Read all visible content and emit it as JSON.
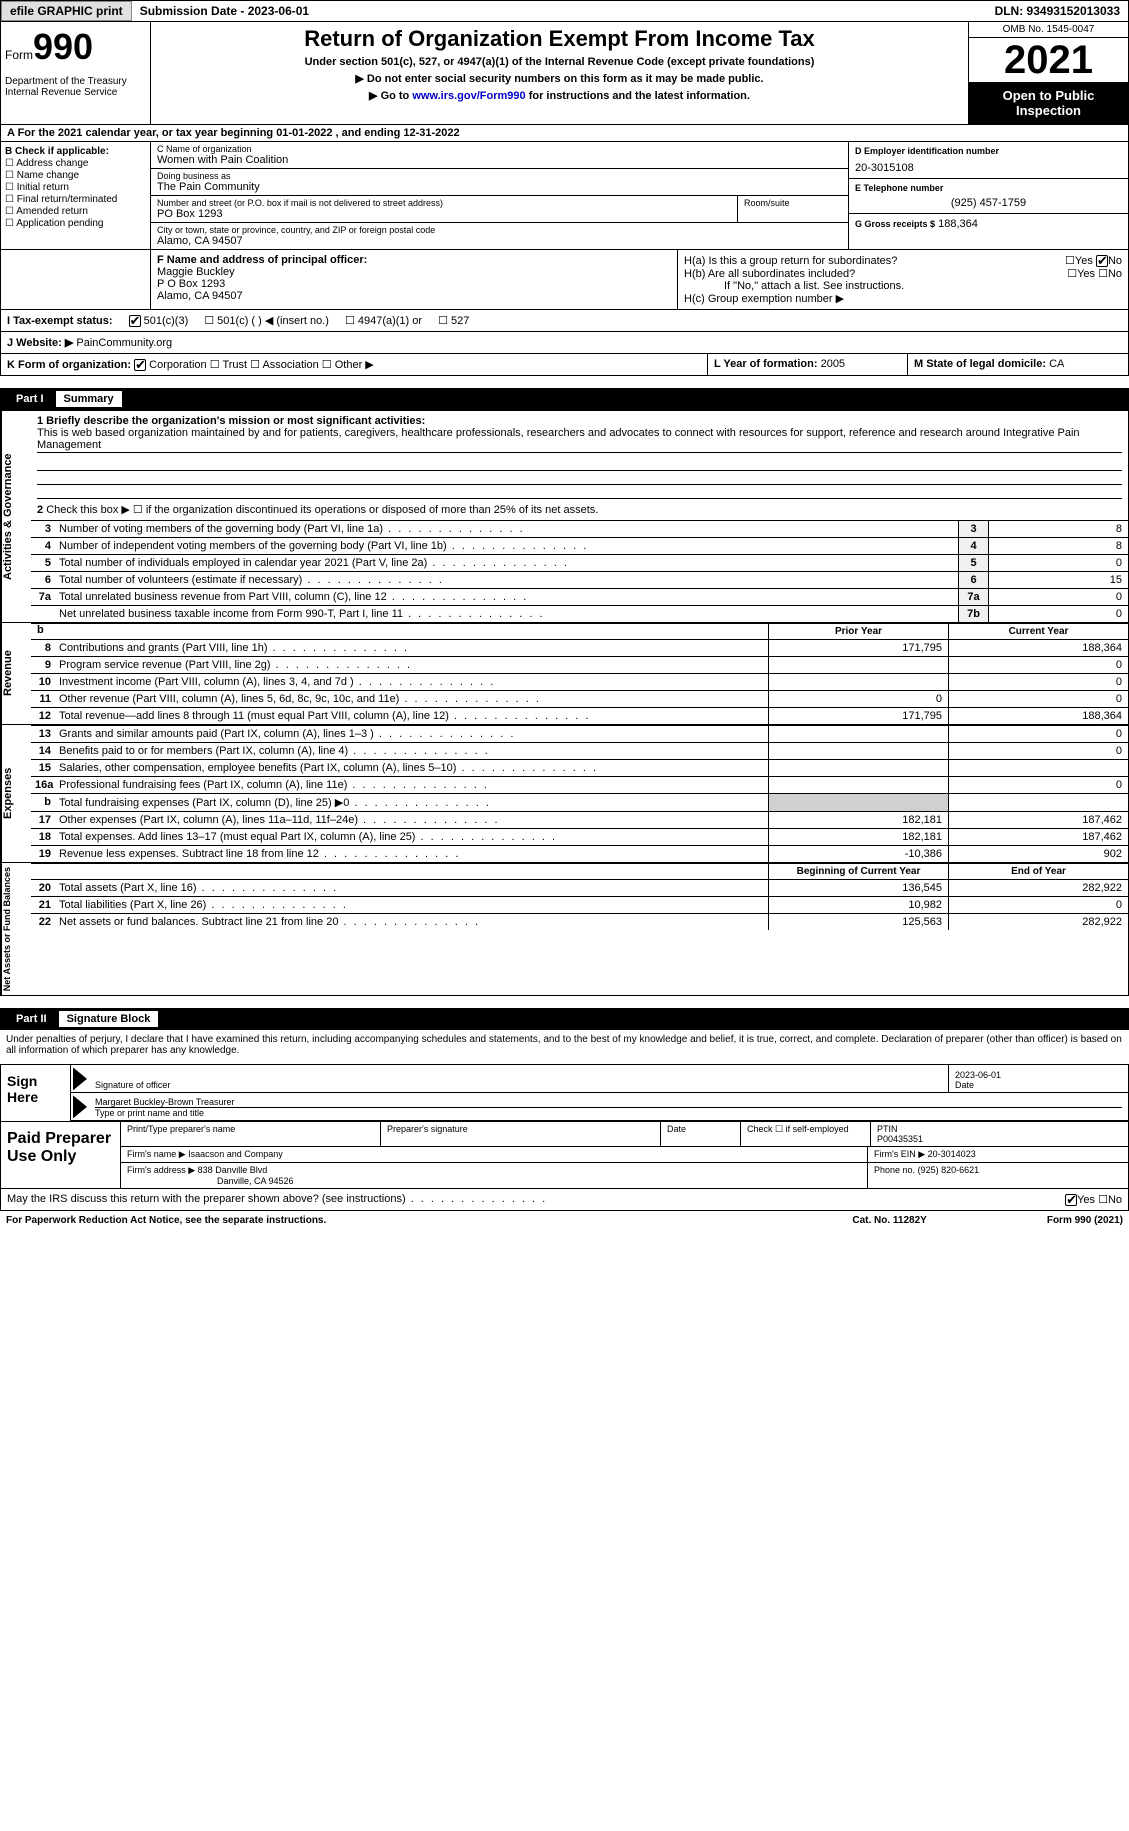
{
  "topbar": {
    "efile_btn": "efile GRAPHIC print",
    "sub_date_label": "Submission Date - 2023-06-01",
    "dln": "DLN: 93493152013033"
  },
  "header": {
    "form_label": "Form",
    "form_num": "990",
    "dept": "Department of the Treasury Internal Revenue Service",
    "title": "Return of Organization Exempt From Income Tax",
    "subtitle": "Under section 501(c), 527, or 4947(a)(1) of the Internal Revenue Code (except private foundations)",
    "note1": "▶ Do not enter social security numbers on this form as it may be made public.",
    "note2_pre": "▶ Go to ",
    "note2_link": "www.irs.gov/Form990",
    "note2_post": " for instructions and the latest information.",
    "omb": "OMB No. 1545-0047",
    "year": "2021",
    "open": "Open to Public Inspection"
  },
  "line_a": "A For the 2021 calendar year, or tax year beginning 01-01-2022  , and ending 12-31-2022",
  "col_b": {
    "hdr": "B Check if applicable:",
    "items": [
      "Address change",
      "Name change",
      "Initial return",
      "Final return/terminated",
      "Amended return",
      "Application pending"
    ]
  },
  "col_c": {
    "name_label": "C Name of organization",
    "name": "Women with Pain Coalition",
    "dba_label": "Doing business as",
    "dba": "The Pain Community",
    "street_label": "Number and street (or P.O. box if mail is not delivered to street address)",
    "street": "PO Box 1293",
    "room_label": "Room/suite",
    "city_label": "City or town, state or province, country, and ZIP or foreign postal code",
    "city": "Alamo, CA  94507"
  },
  "col_d": {
    "ein_label": "D Employer identification number",
    "ein": "20-3015108",
    "tel_label": "E Telephone number",
    "tel": "(925) 457-1759",
    "gross_label": "G Gross receipts $",
    "gross": "188,364"
  },
  "section_f": {
    "label": "F  Name and address of principal officer:",
    "name": "Maggie Buckley",
    "addr1": "P O Box 1293",
    "addr2": "Alamo, CA  94507"
  },
  "section_h": {
    "ha": "H(a)  Is this a group return for subordinates?",
    "hb": "H(b)  Are all subordinates included?",
    "hb_note": "If \"No,\" attach a list. See instructions.",
    "hc": "H(c)  Group exemption number ▶",
    "yes": "Yes",
    "no": "No"
  },
  "status": {
    "label": "I  Tax-exempt status:",
    "opt1": "501(c)(3)",
    "opt2": "501(c) (  ) ◀ (insert no.)",
    "opt3": "4947(a)(1) or",
    "opt4": "527"
  },
  "website": {
    "label": "J  Website: ▶",
    "val": "PainCommunity.org"
  },
  "line_k": {
    "label": "K Form of organization:",
    "corp": "Corporation",
    "trust": "Trust",
    "assoc": "Association",
    "other": "Other ▶"
  },
  "line_l": {
    "label": "L Year of formation:",
    "val": "2005"
  },
  "line_m": {
    "label": "M State of legal domicile:",
    "val": "CA"
  },
  "part1": {
    "num": "Part I",
    "title": "Summary",
    "side1": "Activities & Governance",
    "side2": "Revenue",
    "side3": "Expenses",
    "side4": "Net Assets or Fund Balances",
    "l1_label": "1  Briefly describe the organization's mission or most significant activities:",
    "l1_text": "This is web based organization maintained by and for patients, caregivers, healthcare professionals, researchers and advocates to connect with resources for support, reference and research around Integrative Pain Management",
    "l2": "Check this box ▶ ☐ if the organization discontinued its operations or disposed of more than 25% of its net assets.",
    "rows_gov": [
      {
        "n": "3",
        "d": "Number of voting members of the governing body (Part VI, line 1a)",
        "box": "3",
        "v": "8"
      },
      {
        "n": "4",
        "d": "Number of independent voting members of the governing body (Part VI, line 1b)",
        "box": "4",
        "v": "8"
      },
      {
        "n": "5",
        "d": "Total number of individuals employed in calendar year 2021 (Part V, line 2a)",
        "box": "5",
        "v": "0"
      },
      {
        "n": "6",
        "d": "Total number of volunteers (estimate if necessary)",
        "box": "6",
        "v": "15"
      },
      {
        "n": "7a",
        "d": "Total unrelated business revenue from Part VIII, column (C), line 12",
        "box": "7a",
        "v": "0"
      },
      {
        "n": "",
        "d": "Net unrelated business taxable income from Form 990-T, Part I, line 11",
        "box": "7b",
        "v": "0"
      }
    ],
    "prior_hdr": "Prior Year",
    "curr_hdr": "Current Year",
    "rows_rev": [
      {
        "n": "8",
        "d": "Contributions and grants (Part VIII, line 1h)",
        "p": "171,795",
        "c": "188,364"
      },
      {
        "n": "9",
        "d": "Program service revenue (Part VIII, line 2g)",
        "p": "",
        "c": "0"
      },
      {
        "n": "10",
        "d": "Investment income (Part VIII, column (A), lines 3, 4, and 7d )",
        "p": "",
        "c": "0"
      },
      {
        "n": "11",
        "d": "Other revenue (Part VIII, column (A), lines 5, 6d, 8c, 9c, 10c, and 11e)",
        "p": "0",
        "c": "0"
      },
      {
        "n": "12",
        "d": "Total revenue—add lines 8 through 11 (must equal Part VIII, column (A), line 12)",
        "p": "171,795",
        "c": "188,364"
      }
    ],
    "rows_exp": [
      {
        "n": "13",
        "d": "Grants and similar amounts paid (Part IX, column (A), lines 1–3 )",
        "p": "",
        "c": "0"
      },
      {
        "n": "14",
        "d": "Benefits paid to or for members (Part IX, column (A), line 4)",
        "p": "",
        "c": "0"
      },
      {
        "n": "15",
        "d": "Salaries, other compensation, employee benefits (Part IX, column (A), lines 5–10)",
        "p": "",
        "c": ""
      },
      {
        "n": "16a",
        "d": "Professional fundraising fees (Part IX, column (A), line 11e)",
        "p": "",
        "c": "0"
      },
      {
        "n": "b",
        "d": "Total fundraising expenses (Part IX, column (D), line 25) ▶0",
        "p": "",
        "c": "",
        "shaded": true
      },
      {
        "n": "17",
        "d": "Other expenses (Part IX, column (A), lines 11a–11d, 11f–24e)",
        "p": "182,181",
        "c": "187,462"
      },
      {
        "n": "18",
        "d": "Total expenses. Add lines 13–17 (must equal Part IX, column (A), line 25)",
        "p": "182,181",
        "c": "187,462"
      },
      {
        "n": "19",
        "d": "Revenue less expenses. Subtract line 18 from line 12",
        "p": "-10,386",
        "c": "902"
      }
    ],
    "begin_hdr": "Beginning of Current Year",
    "end_hdr": "End of Year",
    "rows_net": [
      {
        "n": "20",
        "d": "Total assets (Part X, line 16)",
        "p": "136,545",
        "c": "282,922"
      },
      {
        "n": "21",
        "d": "Total liabilities (Part X, line 26)",
        "p": "10,982",
        "c": "0"
      },
      {
        "n": "22",
        "d": "Net assets or fund balances. Subtract line 21 from line 20",
        "p": "125,563",
        "c": "282,922"
      }
    ]
  },
  "part2": {
    "num": "Part II",
    "title": "Signature Block",
    "text": "Under penalties of perjury, I declare that I have examined this return, including accompanying schedules and statements, and to the best of my knowledge and belief, it is true, correct, and complete. Declaration of preparer (other than officer) is based on all information of which preparer has any knowledge.",
    "sign_here": "Sign Here",
    "sig_officer": "Signature of officer",
    "sig_date_val": "2023-06-01",
    "sig_date": "Date",
    "sig_name": "Margaret Buckley-Brown  Treasurer",
    "sig_name_label": "Type or print name and title",
    "prep_label": "Paid Preparer Use Only",
    "prep_name_label": "Print/Type preparer's name",
    "prep_sig_label": "Preparer's signature",
    "prep_date_label": "Date",
    "prep_self": "Check ☐ if self-employed",
    "ptin_label": "PTIN",
    "ptin": "P00435351",
    "firm_name_label": "Firm's name    ▶",
    "firm_name": "Isaacson and Company",
    "firm_ein_label": "Firm's EIN ▶",
    "firm_ein": "20-3014023",
    "firm_addr_label": "Firm's address ▶",
    "firm_addr1": "838 Danville Blvd",
    "firm_addr2": "Danville, CA  94526",
    "phone_label": "Phone no.",
    "phone": "(925) 820-6621",
    "discuss": "May the IRS discuss this return with the preparer shown above? (see instructions)",
    "yes": "Yes",
    "no": "No"
  },
  "footer": {
    "left": "For Paperwork Reduction Act Notice, see the separate instructions.",
    "mid": "Cat. No. 11282Y",
    "right": "Form 990 (2021)"
  }
}
